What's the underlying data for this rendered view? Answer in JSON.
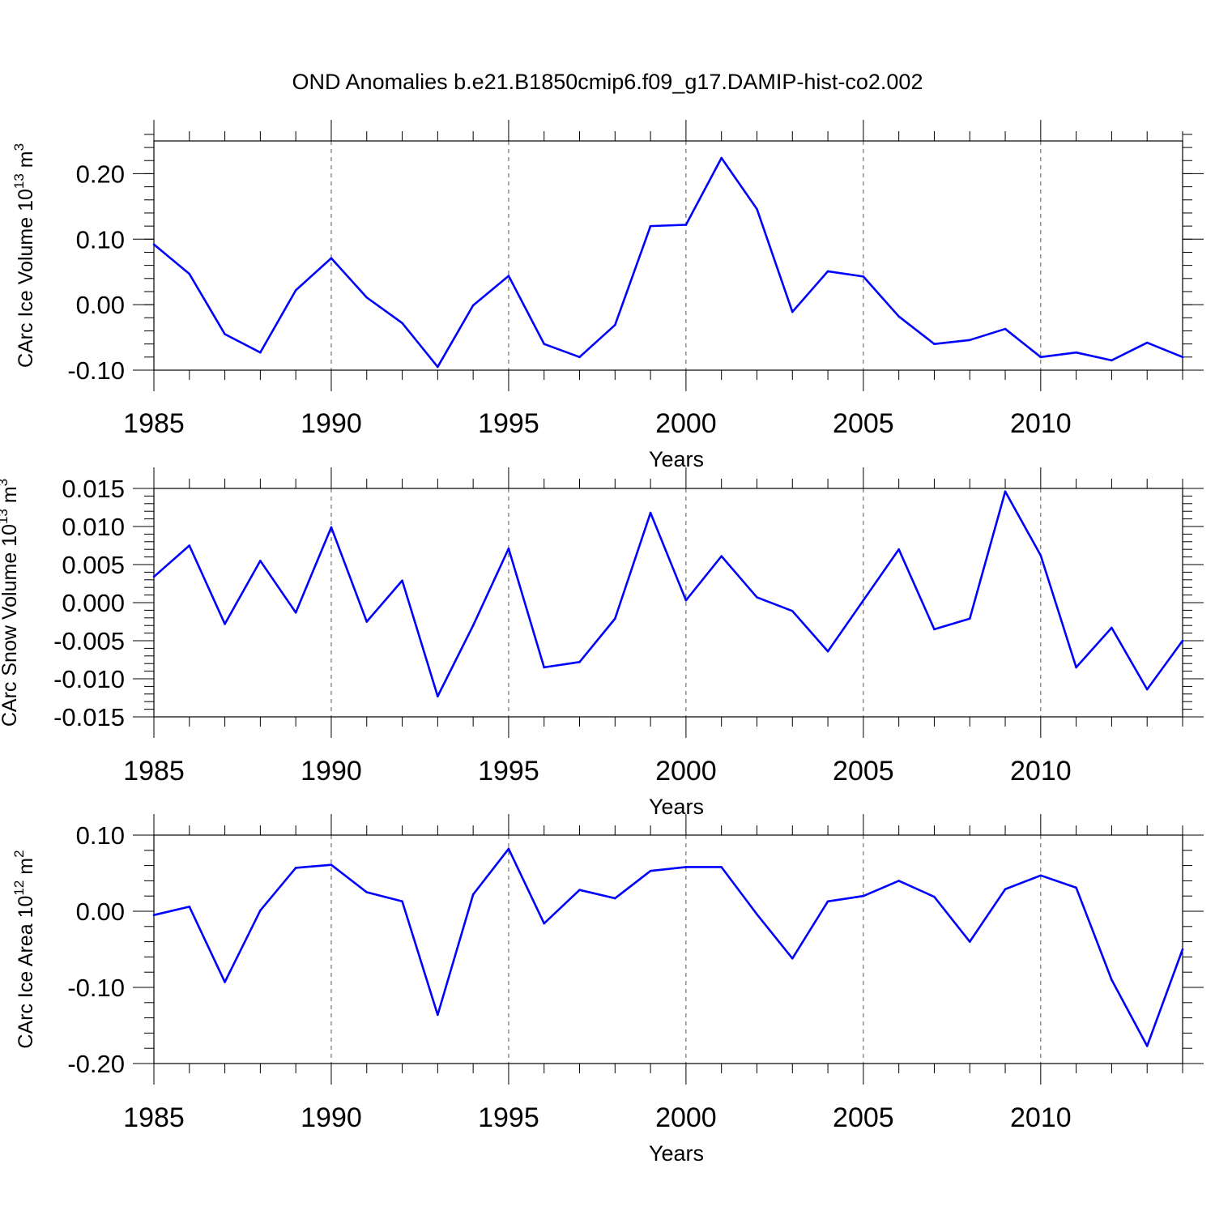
{
  "figure": {
    "title": "OND Anomalies b.e21.B1850cmip6.f09_g17.DAMIP-hist-co2.002"
  },
  "colors": {
    "series_line": "#0000ff",
    "axes": "#000000",
    "grid": "#555555"
  },
  "chart_data": [
    {
      "type": "line",
      "panel_id": "ice-volume",
      "title": "OND Anomalies b.e21.B1850cmip6.f09_g17.DAMIP-hist-co2.002",
      "xlabel": "Years",
      "ylabel": {
        "prefix": "CArc Ice Volume 10",
        "exponent": "13",
        "unit": " m",
        "unit_exponent": "3"
      },
      "xlim": [
        1985,
        2014
      ],
      "ylim": [
        -0.1,
        0.25
      ],
      "x_ticks": [
        1985,
        1990,
        1995,
        2000,
        2005,
        2010
      ],
      "x_tick_labels": [
        "1985",
        "1990",
        "1995",
        "2000",
        "2005",
        "2010"
      ],
      "y_ticks": [
        -0.1,
        0.0,
        0.1,
        0.2
      ],
      "y_tick_labels": [
        "-0.10",
        "0.00",
        "0.10",
        "0.20"
      ],
      "y_minor_step": 0.02,
      "grid": "vertical dashed at major x ticks",
      "x": [
        1985,
        1986,
        1987,
        1988,
        1989,
        1990,
        1991,
        1992,
        1993,
        1994,
        1995,
        1996,
        1997,
        1998,
        1999,
        2000,
        2001,
        2002,
        2003,
        2004,
        2005,
        2006,
        2007,
        2008,
        2009,
        2010,
        2011,
        2012,
        2013,
        2014
      ],
      "series": [
        {
          "name": "CArc Ice Volume",
          "values": [
            0.092,
            0.047,
            -0.045,
            -0.073,
            0.022,
            0.071,
            0.011,
            -0.028,
            -0.095,
            -0.001,
            0.044,
            -0.06,
            -0.08,
            -0.031,
            0.12,
            0.122,
            0.224,
            0.146,
            -0.011,
            0.051,
            0.043,
            -0.018,
            -0.06,
            -0.054,
            -0.037,
            -0.08,
            -0.073,
            -0.085,
            -0.058,
            -0.08
          ]
        }
      ]
    },
    {
      "type": "line",
      "panel_id": "snow-volume",
      "title": "",
      "xlabel": "Years",
      "ylabel": {
        "prefix": "CArc Snow Volume 10",
        "exponent": "13",
        "unit": " m",
        "unit_exponent": "3"
      },
      "xlim": [
        1985,
        2014
      ],
      "ylim": [
        -0.015,
        0.015
      ],
      "x_ticks": [
        1985,
        1990,
        1995,
        2000,
        2005,
        2010
      ],
      "x_tick_labels": [
        "1985",
        "1990",
        "1995",
        "2000",
        "2005",
        "2010"
      ],
      "y_ticks": [
        -0.015,
        -0.01,
        -0.005,
        0.0,
        0.005,
        0.01,
        0.015
      ],
      "y_tick_labels": [
        "-0.015",
        "-0.010",
        "-0.005",
        "0.000",
        "0.005",
        "0.010",
        "0.015"
      ],
      "y_minor_step": 0.001,
      "grid": "vertical dashed at major x ticks",
      "x": [
        1985,
        1986,
        1987,
        1988,
        1989,
        1990,
        1991,
        1992,
        1993,
        1994,
        1995,
        1996,
        1997,
        1998,
        1999,
        2000,
        2001,
        2002,
        2003,
        2004,
        2005,
        2006,
        2007,
        2008,
        2009,
        2010,
        2011,
        2012,
        2013,
        2014
      ],
      "series": [
        {
          "name": "CArc Snow Volume",
          "values": [
            0.0034,
            0.0075,
            -0.0028,
            0.0055,
            -0.0013,
            0.0099,
            -0.0025,
            0.0029,
            -0.0123,
            -0.003,
            0.0071,
            -0.0085,
            -0.0078,
            -0.0021,
            0.0118,
            0.0003,
            0.0061,
            0.0007,
            -0.0011,
            -0.0064,
            0.0003,
            0.007,
            -0.0035,
            -0.0021,
            0.0146,
            0.0062,
            -0.0085,
            -0.0033,
            -0.0114,
            -0.005
          ]
        }
      ]
    },
    {
      "type": "line",
      "panel_id": "ice-area",
      "title": "",
      "xlabel": "Years",
      "ylabel": {
        "prefix": "CArc Ice Area 10",
        "exponent": "12",
        "unit": " m",
        "unit_exponent": "2"
      },
      "xlim": [
        1985,
        2014
      ],
      "ylim": [
        -0.2,
        0.1
      ],
      "x_ticks": [
        1985,
        1990,
        1995,
        2000,
        2005,
        2010
      ],
      "x_tick_labels": [
        "1985",
        "1990",
        "1995",
        "2000",
        "2005",
        "2010"
      ],
      "y_ticks": [
        -0.2,
        -0.1,
        0.0,
        0.1
      ],
      "y_tick_labels": [
        "-0.20",
        "-0.10",
        "0.00",
        "0.10"
      ],
      "y_minor_step": 0.02,
      "grid": "vertical dashed at major x ticks",
      "x": [
        1985,
        1986,
        1987,
        1988,
        1989,
        1990,
        1991,
        1992,
        1993,
        1994,
        1995,
        1996,
        1997,
        1998,
        1999,
        2000,
        2001,
        2002,
        2003,
        2004,
        2005,
        2006,
        2007,
        2008,
        2009,
        2010,
        2011,
        2012,
        2013,
        2014
      ],
      "series": [
        {
          "name": "CArc Ice Area",
          "values": [
            -0.005,
            0.006,
            -0.093,
            0.001,
            0.057,
            0.061,
            0.025,
            0.013,
            -0.136,
            0.022,
            0.082,
            -0.016,
            0.028,
            0.017,
            0.053,
            0.058,
            0.058,
            -0.004,
            -0.062,
            0.013,
            0.02,
            0.04,
            0.019,
            -0.04,
            0.029,
            0.047,
            0.031,
            -0.09,
            -0.177,
            -0.05
          ]
        }
      ]
    }
  ]
}
